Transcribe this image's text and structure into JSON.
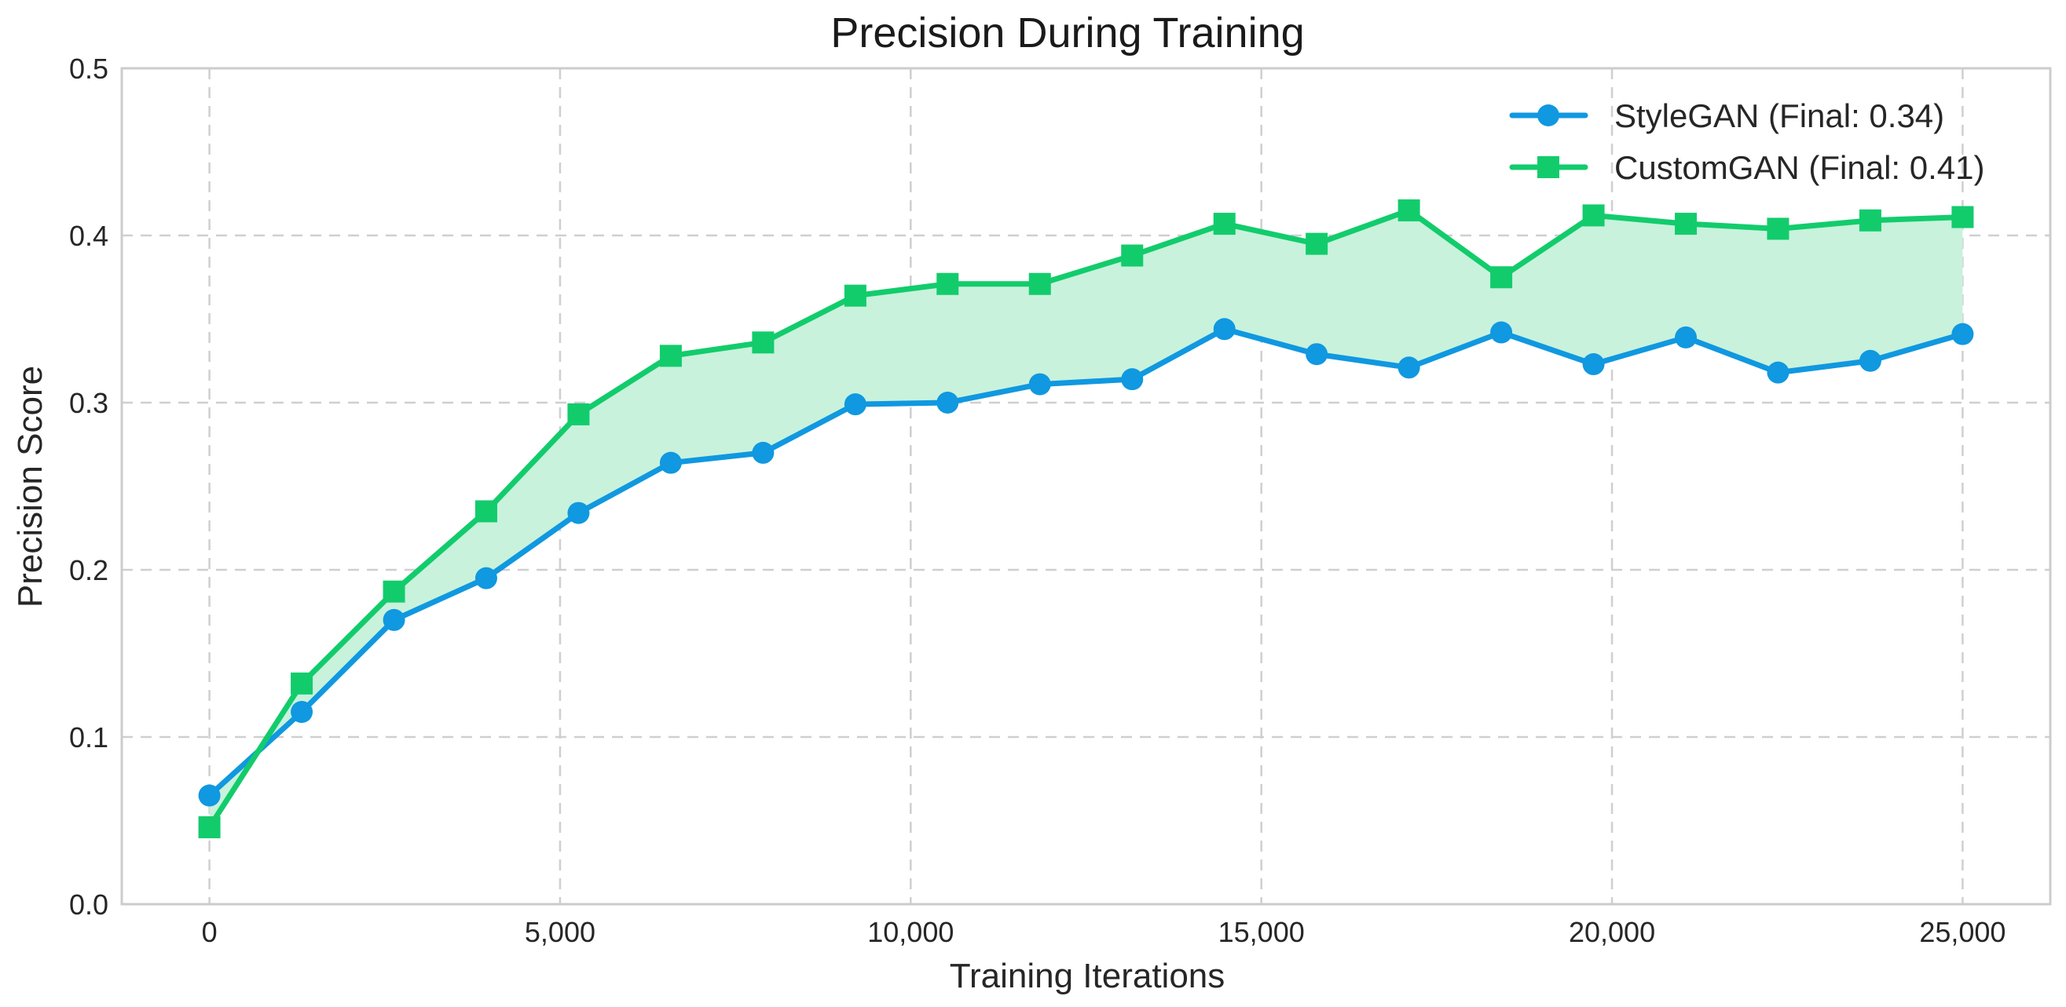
{
  "chart_data": {
    "type": "line",
    "title": "Precision During Training",
    "xlabel": "Training Iterations",
    "ylabel": "Precision Score",
    "xlim": [
      -1250,
      26250
    ],
    "ylim": [
      0.0,
      0.5
    ],
    "x_ticks": [
      0,
      5000,
      10000,
      15000,
      20000,
      25000
    ],
    "x_tick_labels": [
      "0",
      "5,000",
      "10,000",
      "15,000",
      "20,000",
      "25,000"
    ],
    "y_ticks": [
      0.0,
      0.1,
      0.2,
      0.3,
      0.4,
      0.5
    ],
    "y_tick_labels": [
      "0.0",
      "0.1",
      "0.2",
      "0.3",
      "0.4",
      "0.5"
    ],
    "grid": true,
    "legend_position": "top-right",
    "x": [
      0,
      1316,
      2632,
      3947,
      5263,
      6579,
      7895,
      9211,
      10526,
      11842,
      13158,
      14474,
      15789,
      17105,
      18421,
      19737,
      21053,
      22368,
      23684,
      25000
    ],
    "series": [
      {
        "name": "StyleGAN (Final: 0.34)",
        "color": "#1098e0",
        "marker": "circle",
        "values": [
          0.065,
          0.115,
          0.17,
          0.195,
          0.234,
          0.264,
          0.27,
          0.299,
          0.3,
          0.311,
          0.314,
          0.344,
          0.329,
          0.321,
          0.342,
          0.323,
          0.339,
          0.318,
          0.325,
          0.341
        ]
      },
      {
        "name": "CustomGAN (Final: 0.41)",
        "color": "#12cc6c",
        "marker": "square",
        "values": [
          0.046,
          0.132,
          0.187,
          0.235,
          0.293,
          0.328,
          0.336,
          0.364,
          0.371,
          0.371,
          0.388,
          0.407,
          0.395,
          0.415,
          0.375,
          0.412,
          0.407,
          0.404,
          0.409,
          0.411
        ]
      }
    ],
    "fill_between": {
      "color": "#c8f2dc"
    }
  }
}
